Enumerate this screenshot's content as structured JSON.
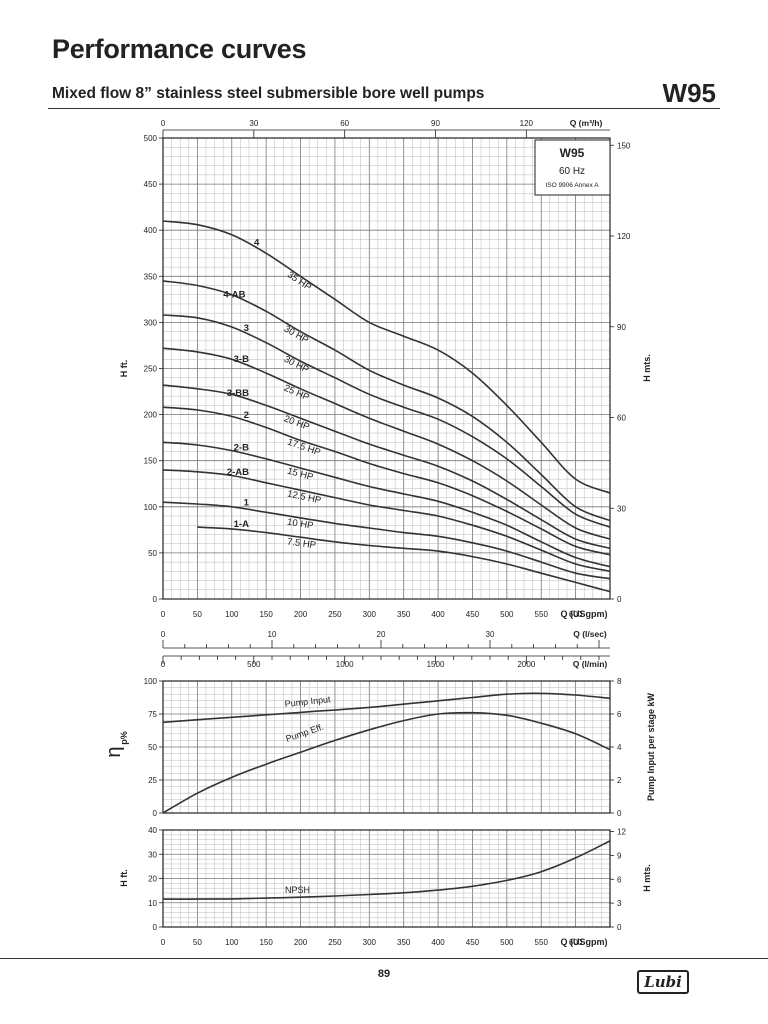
{
  "header": {
    "title": "Performance curves",
    "subtitle": "Mixed flow 8” stainless steel submersible bore well pumps",
    "model": "W95"
  },
  "footer": {
    "page": "89",
    "logo": "Lubi"
  },
  "legend_box": {
    "model": "W95",
    "frequency": "60 Hz",
    "standard": "ISO 9906 Annex A"
  },
  "chart_data": [
    {
      "type": "line",
      "xlabel": "Q (USgpm)",
      "ylabel": "H ft.",
      "y2label": "H mts.",
      "xlim": [
        0,
        650
      ],
      "ylim": [
        0,
        500
      ],
      "x_ticks": [
        0,
        50,
        100,
        150,
        200,
        250,
        300,
        350,
        400,
        450,
        500,
        550,
        600
      ],
      "y_ticks": [
        0,
        50,
        100,
        150,
        200,
        250,
        300,
        350,
        400,
        450,
        500
      ],
      "y2_ticks": [
        0,
        30,
        60,
        90,
        120,
        150
      ],
      "top_axis": {
        "label": "Q (m³/h)",
        "ticks": [
          0,
          30,
          60,
          90,
          120
        ]
      },
      "flow_axes": [
        {
          "label": "Q (l/sec)",
          "ticks": [
            0,
            10,
            20,
            30
          ]
        },
        {
          "label": "Q (l/min)",
          "ticks": [
            0,
            500,
            1000,
            1500,
            2000
          ]
        }
      ],
      "grid": true,
      "series": [
        {
          "name": "4",
          "hp": "35 HP",
          "x": [
            0,
            50,
            100,
            150,
            200,
            250,
            300,
            350,
            400,
            450,
            500,
            550,
            600,
            650
          ],
          "y": [
            410,
            406,
            395,
            375,
            350,
            325,
            300,
            285,
            270,
            245,
            210,
            170,
            130,
            115
          ]
        },
        {
          "name": "4-AB",
          "hp": "30 HP",
          "x": [
            0,
            50,
            100,
            150,
            200,
            250,
            300,
            350,
            400,
            450,
            500,
            550,
            600,
            650
          ],
          "y": [
            345,
            340,
            330,
            312,
            290,
            270,
            248,
            232,
            218,
            198,
            170,
            135,
            100,
            85
          ]
        },
        {
          "name": "3",
          "hp": "30 HP",
          "x": [
            0,
            50,
            100,
            150,
            200,
            250,
            300,
            350,
            400,
            450,
            500,
            550,
            600,
            650
          ],
          "y": [
            308,
            305,
            295,
            278,
            258,
            240,
            222,
            208,
            195,
            176,
            152,
            122,
            92,
            78
          ]
        },
        {
          "name": "3-B",
          "hp": "25 HP",
          "x": [
            0,
            50,
            100,
            150,
            200,
            250,
            300,
            350,
            400,
            450,
            500,
            550,
            600,
            650
          ],
          "y": [
            272,
            268,
            260,
            245,
            228,
            212,
            196,
            182,
            168,
            150,
            128,
            102,
            77,
            65
          ]
        },
        {
          "name": "3-BB",
          "hp": "20 HP",
          "x": [
            0,
            50,
            100,
            150,
            200,
            250,
            300,
            350,
            400,
            450,
            500,
            550,
            600,
            650
          ],
          "y": [
            232,
            228,
            222,
            210,
            196,
            182,
            168,
            156,
            144,
            128,
            108,
            86,
            65,
            55
          ]
        },
        {
          "name": "2",
          "hp": "17.5 HP",
          "x": [
            0,
            50,
            100,
            150,
            200,
            250,
            300,
            350,
            400,
            450,
            500,
            550,
            600,
            650
          ],
          "y": [
            208,
            205,
            198,
            186,
            172,
            160,
            147,
            136,
            126,
            112,
            95,
            76,
            57,
            48
          ]
        },
        {
          "name": "2-B",
          "hp": "15 HP",
          "x": [
            0,
            50,
            100,
            150,
            200,
            250,
            300,
            350,
            400,
            450,
            500,
            550,
            600,
            650
          ],
          "y": [
            170,
            167,
            161,
            152,
            142,
            132,
            122,
            114,
            106,
            94,
            80,
            62,
            45,
            35
          ]
        },
        {
          "name": "2-AB",
          "hp": "12.5 HP",
          "x": [
            0,
            50,
            100,
            150,
            200,
            250,
            300,
            350,
            400,
            450,
            500,
            550,
            600,
            650
          ],
          "y": [
            140,
            138,
            134,
            126,
            118,
            110,
            102,
            96,
            90,
            80,
            68,
            53,
            38,
            30
          ]
        },
        {
          "name": "1",
          "hp": "10 HP",
          "x": [
            0,
            50,
            100,
            150,
            200,
            250,
            300,
            350,
            400,
            450,
            500,
            550,
            600,
            650
          ],
          "y": [
            105,
            103,
            100,
            94,
            88,
            82,
            77,
            72,
            68,
            61,
            52,
            40,
            28,
            22
          ]
        },
        {
          "name": "1-A",
          "hp": "7.5 HP",
          "x": [
            50,
            100,
            150,
            200,
            250,
            300,
            350,
            400,
            450,
            500,
            550,
            600,
            650
          ],
          "y": [
            78,
            76,
            72,
            67,
            62,
            58,
            55,
            52,
            46,
            38,
            28,
            18,
            8
          ]
        }
      ]
    },
    {
      "type": "line",
      "xlabel": "",
      "ylabel": "η p%",
      "y2label": "Pump Input per stage kW",
      "xlim": [
        0,
        650
      ],
      "ylim": [
        0,
        100
      ],
      "y_ticks": [
        0,
        25,
        50,
        75,
        100
      ],
      "y2_ticks": [
        0,
        2,
        4,
        6,
        8
      ],
      "grid": true,
      "series": [
        {
          "name": "Pump Input",
          "axis": "right",
          "x": [
            0,
            100,
            200,
            300,
            400,
            450,
            500,
            550,
            600,
            650
          ],
          "y": [
            5.5,
            5.8,
            6.1,
            6.4,
            6.8,
            7.0,
            7.2,
            7.25,
            7.15,
            6.95
          ]
        },
        {
          "name": "Pump Eff.",
          "axis": "left",
          "x": [
            0,
            50,
            100,
            150,
            200,
            250,
            300,
            350,
            400,
            450,
            500,
            550,
            600,
            650
          ],
          "y": [
            0,
            15,
            27,
            37,
            46,
            55,
            63,
            70,
            75,
            76,
            74,
            68,
            60,
            48
          ]
        }
      ]
    },
    {
      "type": "line",
      "xlabel": "Q (USgpm)",
      "ylabel": "H ft.",
      "y2label": "H mts.",
      "xlim": [
        0,
        650
      ],
      "ylim": [
        0,
        40
      ],
      "x_ticks": [
        0,
        50,
        100,
        150,
        200,
        250,
        300,
        350,
        400,
        450,
        500,
        550,
        600
      ],
      "y_ticks": [
        0,
        10,
        20,
        30,
        40
      ],
      "y2_ticks": [
        0,
        3,
        6,
        9,
        12
      ],
      "grid": true,
      "series": [
        {
          "name": "NPSH",
          "x": [
            0,
            50,
            100,
            150,
            200,
            250,
            300,
            350,
            400,
            450,
            500,
            550,
            600,
            650
          ],
          "y": [
            11.5,
            11.5,
            11.6,
            11.9,
            12.3,
            12.8,
            13.4,
            14.1,
            15.2,
            16.8,
            19.2,
            22.8,
            28.5,
            35.5
          ]
        }
      ]
    }
  ]
}
